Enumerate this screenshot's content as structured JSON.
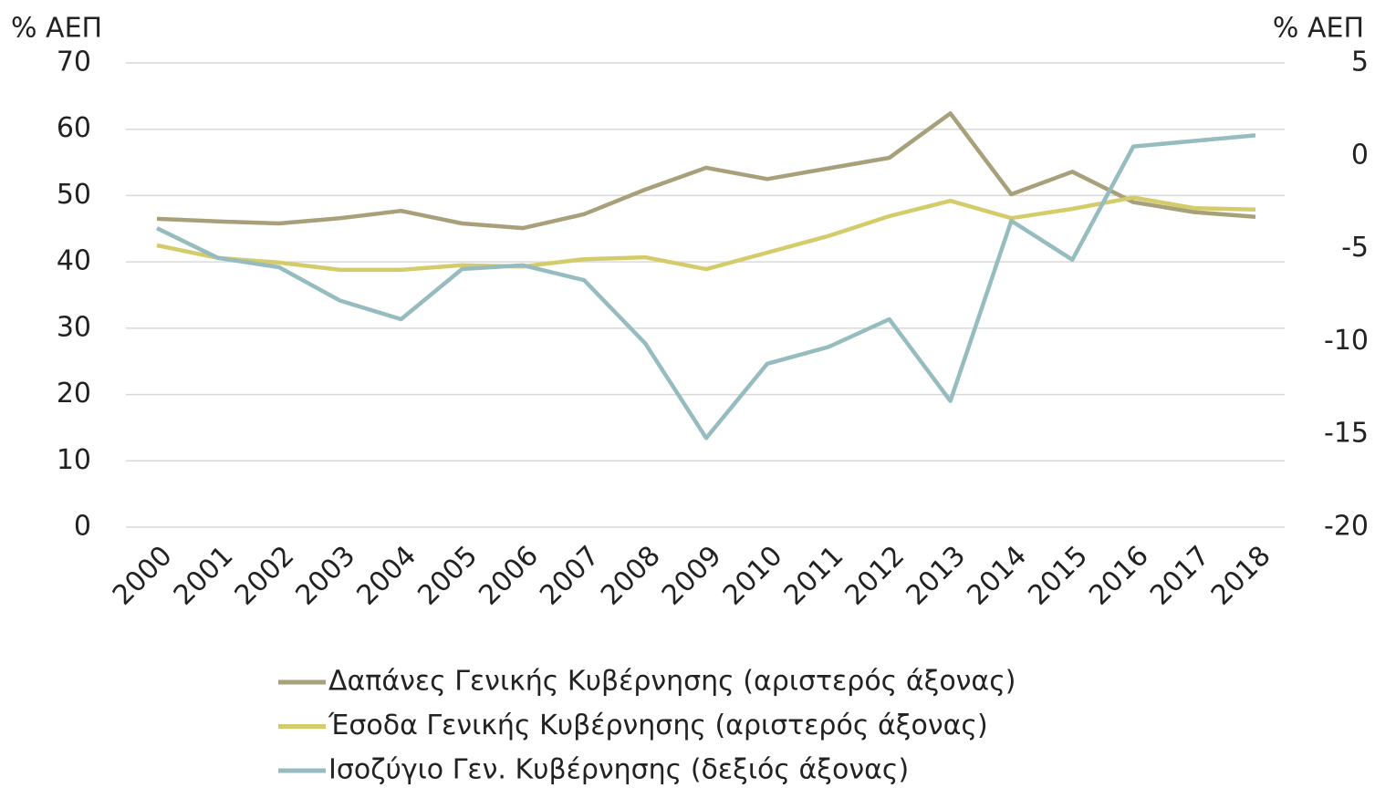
{
  "chart_data": {
    "type": "line",
    "y_label": "% ΑΕΠ",
    "y2_label": "% ΑΕΠ",
    "categories": [
      "2000",
      "2001",
      "2002",
      "2003",
      "2004",
      "2005",
      "2006",
      "2007",
      "2008",
      "2009",
      "2010",
      "2011",
      "2012",
      "2013",
      "2014",
      "2015",
      "2016",
      "2017",
      "2018"
    ],
    "series": [
      {
        "name": "Δαπάνες Γενικής Κυβέρνησης (αριστερός άξονας)",
        "color": "#a8a07a",
        "axis": "y",
        "values": [
          46.5,
          46.1,
          45.8,
          46.6,
          47.7,
          45.8,
          45.1,
          47.2,
          50.9,
          54.2,
          52.5,
          54.1,
          55.7,
          62.4,
          50.2,
          53.6,
          49.0,
          47.5,
          46.8
        ]
      },
      {
        "name": "Έσοδα Γενικής Κυβέρνησης (αριστερός άξονας)",
        "color": "#d4cc6a",
        "axis": "y",
        "values": [
          42.5,
          40.6,
          39.9,
          38.8,
          38.8,
          39.5,
          39.3,
          40.4,
          40.7,
          38.9,
          41.4,
          43.9,
          46.9,
          49.2,
          46.6,
          48.0,
          49.7,
          48.1,
          47.9
        ]
      },
      {
        "name": "Ισοζύγιο Γεν. Κυβέρνησης (δεξιός άξονας)",
        "color": "#96bcbf",
        "axis": "y2",
        "values": [
          -3.9,
          -5.5,
          -6.0,
          -7.8,
          -8.8,
          -6.1,
          -5.9,
          -6.7,
          -10.1,
          -15.2,
          -11.2,
          -10.3,
          -8.8,
          -13.2,
          -3.5,
          -5.6,
          0.5,
          0.8,
          1.1
        ]
      }
    ],
    "ylim": [
      0,
      70
    ],
    "yticks": [
      0,
      10,
      20,
      30,
      40,
      50,
      60,
      70
    ],
    "y2lim": [
      -20,
      5
    ],
    "y2ticks": [
      -20,
      -15,
      -10,
      -5,
      0,
      5
    ],
    "grid": true
  }
}
